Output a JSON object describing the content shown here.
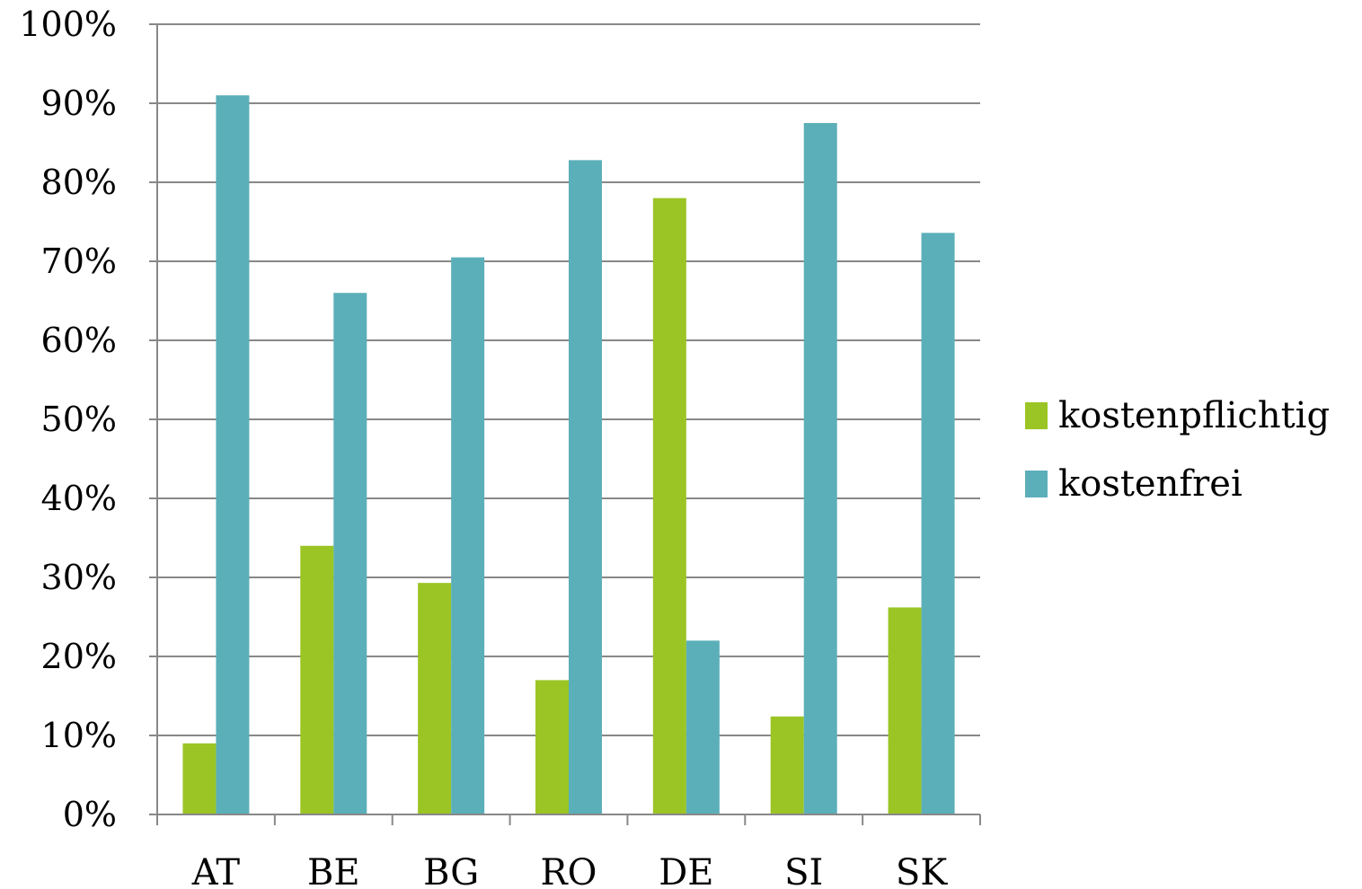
{
  "chart_data": {
    "type": "bar",
    "categories": [
      "AT",
      "BE",
      "BG",
      "RO",
      "DE",
      "SI",
      "SK"
    ],
    "series": [
      {
        "name": "kostenpflichtig",
        "values": [
          9,
          34,
          29.3,
          17,
          78,
          12.4,
          26.2
        ]
      },
      {
        "name": "kostenfrei",
        "values": [
          91,
          66,
          70.5,
          82.8,
          22,
          87.5,
          73.6
        ]
      }
    ],
    "colors": [
      "#9BC524",
      "#5BAFB9"
    ],
    "ylim": [
      0,
      100
    ],
    "yticks": [
      0,
      10,
      20,
      30,
      40,
      50,
      60,
      70,
      80,
      90,
      100
    ],
    "yunit": "%",
    "grid": true,
    "legend_position": "right",
    "title": "",
    "xlabel": "",
    "ylabel": ""
  }
}
